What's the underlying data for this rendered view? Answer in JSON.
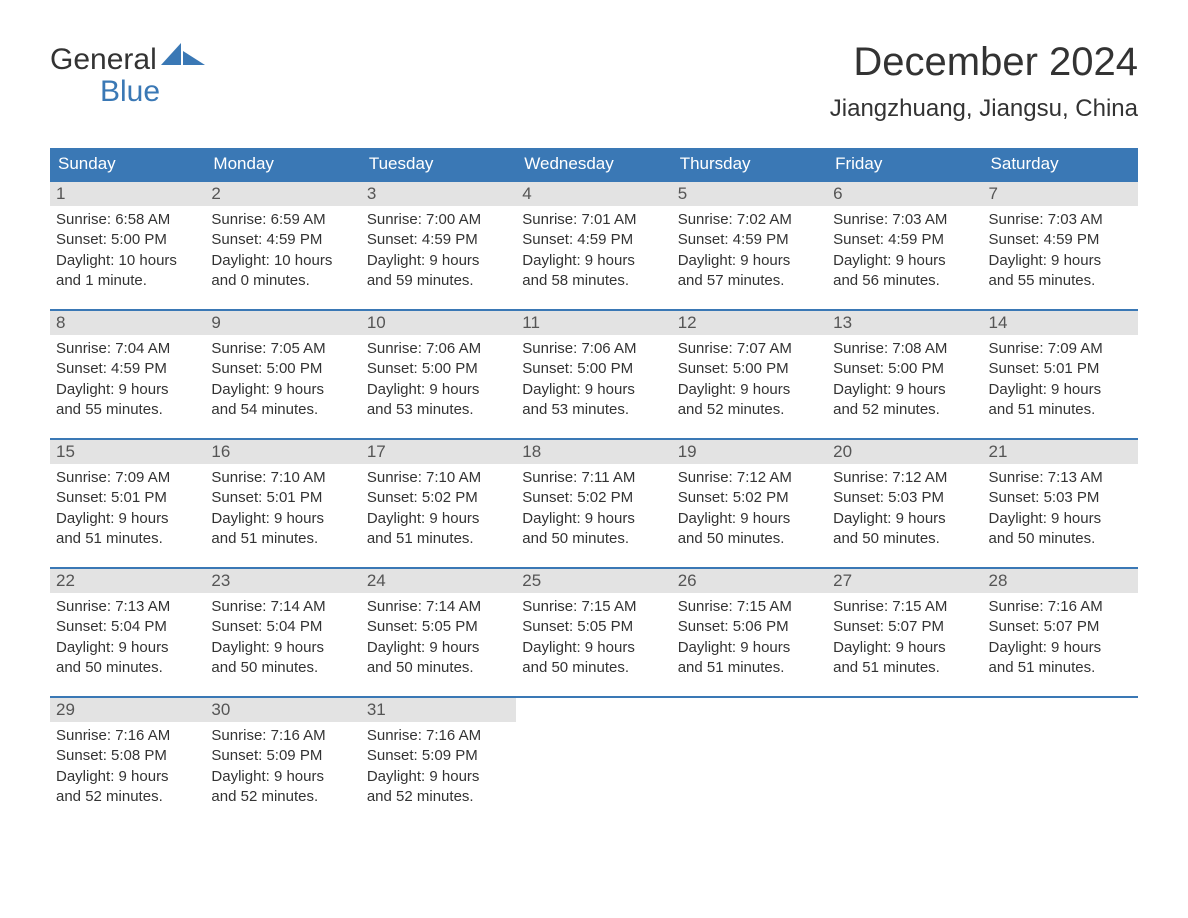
{
  "logo": {
    "word1": "General",
    "word2": "Blue"
  },
  "title": "December 2024",
  "location": "Jiangzhuang, Jiangsu, China",
  "colors": {
    "accent": "#3a78b5",
    "daynum_bg": "#e3e3e3",
    "text": "#333333",
    "white": "#ffffff"
  },
  "weekdays": [
    "Sunday",
    "Monday",
    "Tuesday",
    "Wednesday",
    "Thursday",
    "Friday",
    "Saturday"
  ],
  "days": [
    {
      "n": "1",
      "sunrise": "Sunrise: 6:58 AM",
      "sunset": "Sunset: 5:00 PM",
      "day1": "Daylight: 10 hours",
      "day2": "and 1 minute."
    },
    {
      "n": "2",
      "sunrise": "Sunrise: 6:59 AM",
      "sunset": "Sunset: 4:59 PM",
      "day1": "Daylight: 10 hours",
      "day2": "and 0 minutes."
    },
    {
      "n": "3",
      "sunrise": "Sunrise: 7:00 AM",
      "sunset": "Sunset: 4:59 PM",
      "day1": "Daylight: 9 hours",
      "day2": "and 59 minutes."
    },
    {
      "n": "4",
      "sunrise": "Sunrise: 7:01 AM",
      "sunset": "Sunset: 4:59 PM",
      "day1": "Daylight: 9 hours",
      "day2": "and 58 minutes."
    },
    {
      "n": "5",
      "sunrise": "Sunrise: 7:02 AM",
      "sunset": "Sunset: 4:59 PM",
      "day1": "Daylight: 9 hours",
      "day2": "and 57 minutes."
    },
    {
      "n": "6",
      "sunrise": "Sunrise: 7:03 AM",
      "sunset": "Sunset: 4:59 PM",
      "day1": "Daylight: 9 hours",
      "day2": "and 56 minutes."
    },
    {
      "n": "7",
      "sunrise": "Sunrise: 7:03 AM",
      "sunset": "Sunset: 4:59 PM",
      "day1": "Daylight: 9 hours",
      "day2": "and 55 minutes."
    },
    {
      "n": "8",
      "sunrise": "Sunrise: 7:04 AM",
      "sunset": "Sunset: 4:59 PM",
      "day1": "Daylight: 9 hours",
      "day2": "and 55 minutes."
    },
    {
      "n": "9",
      "sunrise": "Sunrise: 7:05 AM",
      "sunset": "Sunset: 5:00 PM",
      "day1": "Daylight: 9 hours",
      "day2": "and 54 minutes."
    },
    {
      "n": "10",
      "sunrise": "Sunrise: 7:06 AM",
      "sunset": "Sunset: 5:00 PM",
      "day1": "Daylight: 9 hours",
      "day2": "and 53 minutes."
    },
    {
      "n": "11",
      "sunrise": "Sunrise: 7:06 AM",
      "sunset": "Sunset: 5:00 PM",
      "day1": "Daylight: 9 hours",
      "day2": "and 53 minutes."
    },
    {
      "n": "12",
      "sunrise": "Sunrise: 7:07 AM",
      "sunset": "Sunset: 5:00 PM",
      "day1": "Daylight: 9 hours",
      "day2": "and 52 minutes."
    },
    {
      "n": "13",
      "sunrise": "Sunrise: 7:08 AM",
      "sunset": "Sunset: 5:00 PM",
      "day1": "Daylight: 9 hours",
      "day2": "and 52 minutes."
    },
    {
      "n": "14",
      "sunrise": "Sunrise: 7:09 AM",
      "sunset": "Sunset: 5:01 PM",
      "day1": "Daylight: 9 hours",
      "day2": "and 51 minutes."
    },
    {
      "n": "15",
      "sunrise": "Sunrise: 7:09 AM",
      "sunset": "Sunset: 5:01 PM",
      "day1": "Daylight: 9 hours",
      "day2": "and 51 minutes."
    },
    {
      "n": "16",
      "sunrise": "Sunrise: 7:10 AM",
      "sunset": "Sunset: 5:01 PM",
      "day1": "Daylight: 9 hours",
      "day2": "and 51 minutes."
    },
    {
      "n": "17",
      "sunrise": "Sunrise: 7:10 AM",
      "sunset": "Sunset: 5:02 PM",
      "day1": "Daylight: 9 hours",
      "day2": "and 51 minutes."
    },
    {
      "n": "18",
      "sunrise": "Sunrise: 7:11 AM",
      "sunset": "Sunset: 5:02 PM",
      "day1": "Daylight: 9 hours",
      "day2": "and 50 minutes."
    },
    {
      "n": "19",
      "sunrise": "Sunrise: 7:12 AM",
      "sunset": "Sunset: 5:02 PM",
      "day1": "Daylight: 9 hours",
      "day2": "and 50 minutes."
    },
    {
      "n": "20",
      "sunrise": "Sunrise: 7:12 AM",
      "sunset": "Sunset: 5:03 PM",
      "day1": "Daylight: 9 hours",
      "day2": "and 50 minutes."
    },
    {
      "n": "21",
      "sunrise": "Sunrise: 7:13 AM",
      "sunset": "Sunset: 5:03 PM",
      "day1": "Daylight: 9 hours",
      "day2": "and 50 minutes."
    },
    {
      "n": "22",
      "sunrise": "Sunrise: 7:13 AM",
      "sunset": "Sunset: 5:04 PM",
      "day1": "Daylight: 9 hours",
      "day2": "and 50 minutes."
    },
    {
      "n": "23",
      "sunrise": "Sunrise: 7:14 AM",
      "sunset": "Sunset: 5:04 PM",
      "day1": "Daylight: 9 hours",
      "day2": "and 50 minutes."
    },
    {
      "n": "24",
      "sunrise": "Sunrise: 7:14 AM",
      "sunset": "Sunset: 5:05 PM",
      "day1": "Daylight: 9 hours",
      "day2": "and 50 minutes."
    },
    {
      "n": "25",
      "sunrise": "Sunrise: 7:15 AM",
      "sunset": "Sunset: 5:05 PM",
      "day1": "Daylight: 9 hours",
      "day2": "and 50 minutes."
    },
    {
      "n": "26",
      "sunrise": "Sunrise: 7:15 AM",
      "sunset": "Sunset: 5:06 PM",
      "day1": "Daylight: 9 hours",
      "day2": "and 51 minutes."
    },
    {
      "n": "27",
      "sunrise": "Sunrise: 7:15 AM",
      "sunset": "Sunset: 5:07 PM",
      "day1": "Daylight: 9 hours",
      "day2": "and 51 minutes."
    },
    {
      "n": "28",
      "sunrise": "Sunrise: 7:16 AM",
      "sunset": "Sunset: 5:07 PM",
      "day1": "Daylight: 9 hours",
      "day2": "and 51 minutes."
    },
    {
      "n": "29",
      "sunrise": "Sunrise: 7:16 AM",
      "sunset": "Sunset: 5:08 PM",
      "day1": "Daylight: 9 hours",
      "day2": "and 52 minutes."
    },
    {
      "n": "30",
      "sunrise": "Sunrise: 7:16 AM",
      "sunset": "Sunset: 5:09 PM",
      "day1": "Daylight: 9 hours",
      "day2": "and 52 minutes."
    },
    {
      "n": "31",
      "sunrise": "Sunrise: 7:16 AM",
      "sunset": "Sunset: 5:09 PM",
      "day1": "Daylight: 9 hours",
      "day2": "and 52 minutes."
    }
  ],
  "layout": {
    "columns": 7,
    "first_day_column": 0,
    "total_cells": 35
  }
}
